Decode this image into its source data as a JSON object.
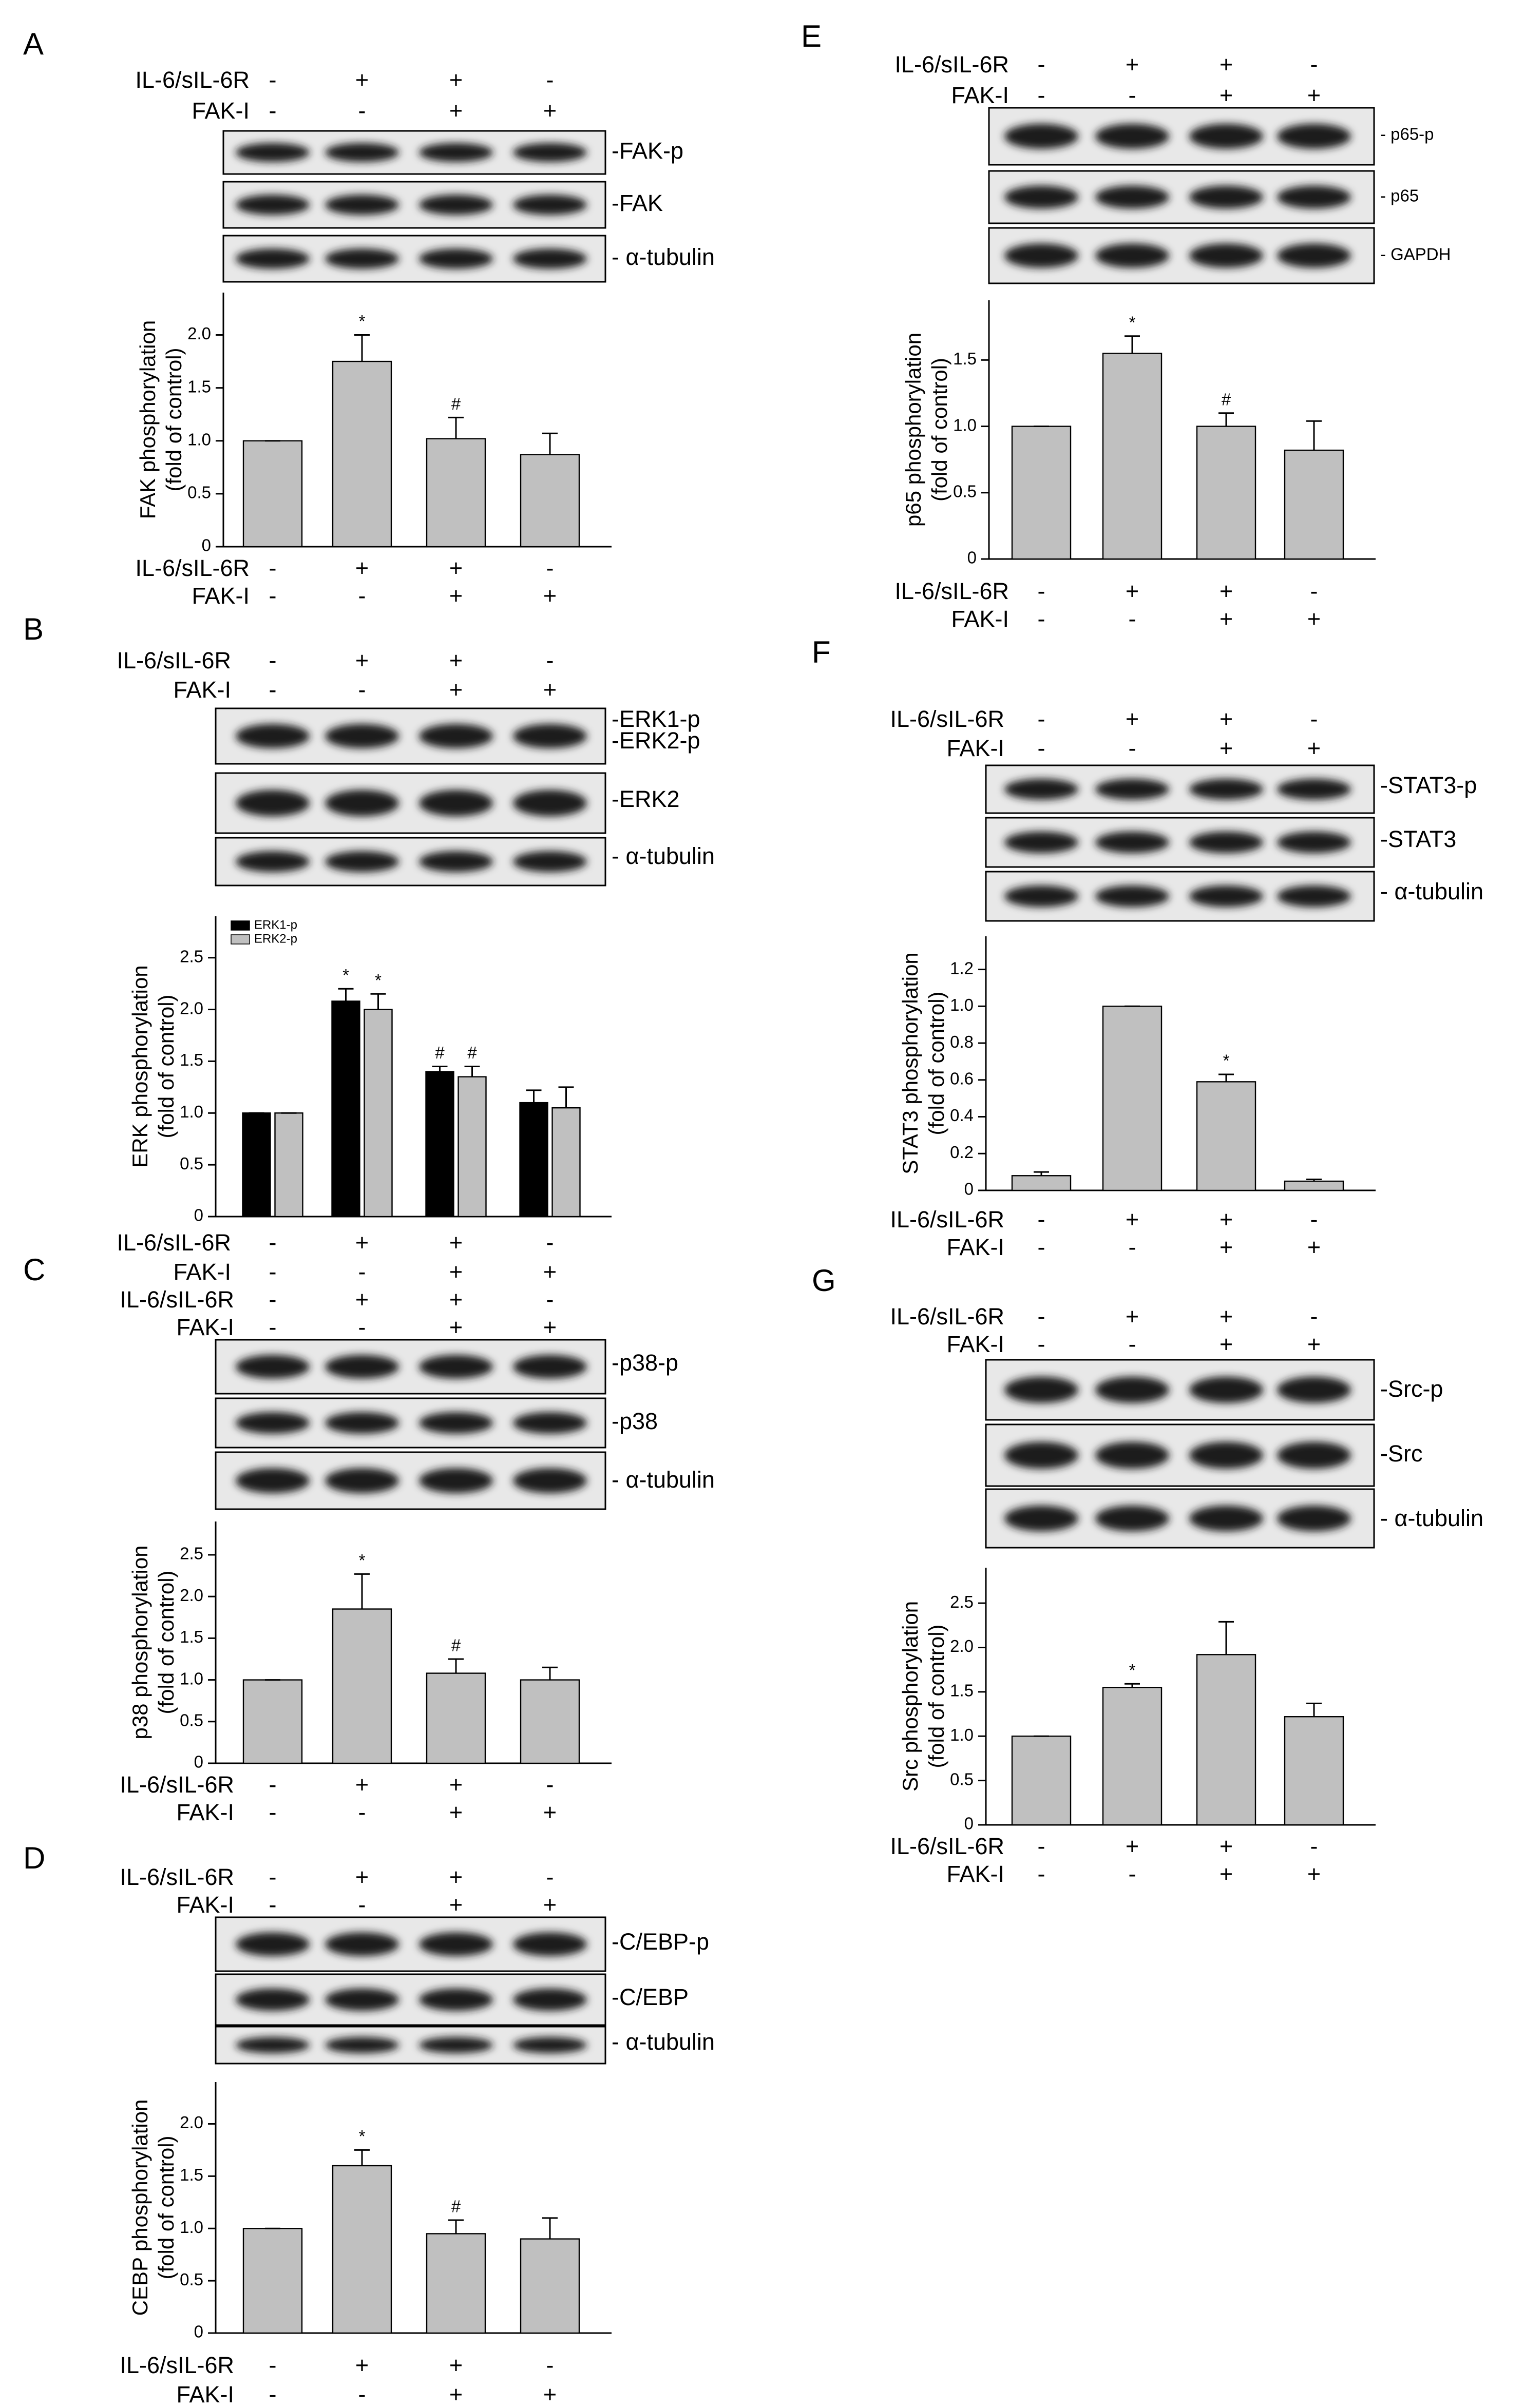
{
  "chart_data": [
    {
      "type": "bar",
      "panel": "A",
      "conditions": [
        {
          "name": "IL-6/sIL-6R",
          "signs": [
            "-",
            "+",
            "+",
            "-"
          ]
        },
        {
          "name": "FAK-I",
          "signs": [
            "-",
            "-",
            "+",
            "+"
          ]
        }
      ],
      "blots": [
        "-FAK-p",
        "-FAK",
        "- α-tubulin"
      ],
      "ylabel": [
        "FAK phosphorylation",
        "(fold of control)"
      ],
      "ylim": [
        0,
        2.4
      ],
      "yticks": [
        0,
        0.5,
        {
          "value": 1,
          "label": "1.0"
        },
        1.5,
        {
          "value": 2,
          "label": "2.0"
        }
      ],
      "series": [
        {
          "color": "#c0c0c0",
          "values": [
            1.0,
            1.75,
            1.02,
            0.87
          ],
          "errors": [
            0,
            0.25,
            0.2,
            0.2
          ],
          "markers": [
            null,
            "*",
            "#",
            null
          ]
        }
      ]
    },
    {
      "type": "bar",
      "panel": "B",
      "conditions": [
        {
          "name": "IL-6/sIL-6R",
          "signs": [
            "-",
            "+",
            "+",
            "-"
          ]
        },
        {
          "name": "FAK-I",
          "signs": [
            "-",
            "-",
            "+",
            "+"
          ]
        }
      ],
      "blots": [
        "-ERK1-p",
        "-ERK2-p",
        "-ERK2",
        "- α-tubulin"
      ],
      "ylabel": [
        "ERK phosphorylation",
        "(fold of control)"
      ],
      "ylim": [
        0,
        2.9
      ],
      "yticks": [
        0,
        0.5,
        {
          "value": 1,
          "label": "1.0"
        },
        1.5,
        {
          "value": 2,
          "label": "2.0"
        },
        2.5
      ],
      "series": [
        {
          "name": "ERK1-p",
          "color": "#000000",
          "values": [
            1.0,
            2.08,
            1.4,
            1.1
          ],
          "errors": [
            0,
            0.12,
            0.05,
            0.12
          ],
          "markers": [
            null,
            "*",
            "#",
            null
          ]
        },
        {
          "name": "ERK2-p",
          "color": "#c0c0c0",
          "values": [
            1.0,
            2.0,
            1.35,
            1.05
          ],
          "errors": [
            0,
            0.15,
            0.1,
            0.2
          ],
          "markers": [
            null,
            "*",
            "#",
            null
          ]
        }
      ]
    },
    {
      "type": "bar",
      "panel": "C",
      "conditions": [
        {
          "name": "IL-6/sIL-6R",
          "signs": [
            "-",
            "+",
            "+",
            "-"
          ]
        },
        {
          "name": "FAK-I",
          "signs": [
            "-",
            "-",
            "+",
            "+"
          ]
        }
      ],
      "blots": [
        "-p38-p",
        "-p38",
        "- α-tubulin"
      ],
      "ylabel": [
        "p38 phosphorylation",
        "(fold of control)"
      ],
      "ylim": [
        0,
        2.9
      ],
      "yticks": [
        0,
        0.5,
        {
          "value": 1,
          "label": "1.0"
        },
        1.5,
        {
          "value": 2,
          "label": "2.0"
        },
        2.5
      ],
      "series": [
        {
          "color": "#c0c0c0",
          "values": [
            1.0,
            1.85,
            1.08,
            1.0
          ],
          "errors": [
            0,
            0.42,
            0.17,
            0.15
          ],
          "markers": [
            null,
            "*",
            "#",
            null
          ]
        }
      ]
    },
    {
      "type": "bar",
      "panel": "D",
      "conditions": [
        {
          "name": "IL-6/sIL-6R",
          "signs": [
            "-",
            "+",
            "+",
            "-"
          ]
        },
        {
          "name": "FAK-I",
          "signs": [
            "-",
            "-",
            "+",
            "+"
          ]
        }
      ],
      "blots": [
        "-C/EBP-p",
        "-C/EBP",
        "- α-tubulin"
      ],
      "ylabel": [
        "CEBP phosphorylation",
        "(fold of control)"
      ],
      "ylim": [
        0,
        2.4
      ],
      "yticks": [
        0,
        0.5,
        {
          "value": 1,
          "label": "1.0"
        },
        1.5,
        {
          "value": 2,
          "label": "2.0"
        }
      ],
      "series": [
        {
          "color": "#c0c0c0",
          "values": [
            1.0,
            1.6,
            0.95,
            0.9
          ],
          "errors": [
            0,
            0.15,
            0.13,
            0.2
          ],
          "markers": [
            null,
            "*",
            "#",
            null
          ]
        }
      ]
    },
    {
      "type": "bar",
      "panel": "E",
      "conditions": [
        {
          "name": "IL-6/sIL-6R",
          "signs": [
            "-",
            "+",
            "+",
            "-"
          ]
        },
        {
          "name": "FAK-I",
          "signs": [
            "-",
            "-",
            "+",
            "+"
          ]
        }
      ],
      "blots": [
        "- p65-p",
        "- p65",
        "- GAPDH"
      ],
      "ylabel": [
        "p65 phosphorylation",
        "(fold of control)"
      ],
      "ylim": [
        0,
        1.95
      ],
      "yticks": [
        0,
        0.5,
        {
          "value": 1,
          "label": "1.0"
        },
        1.5
      ],
      "series": [
        {
          "color": "#c0c0c0",
          "values": [
            1.0,
            1.55,
            1.0,
            0.82
          ],
          "errors": [
            0,
            0.13,
            0.1,
            0.22
          ],
          "markers": [
            null,
            "*",
            "#",
            null
          ]
        }
      ]
    },
    {
      "type": "bar",
      "panel": "F",
      "conditions": [
        {
          "name": "IL-6/sIL-6R",
          "signs": [
            "-",
            "+",
            "+",
            "-"
          ]
        },
        {
          "name": "FAK-I",
          "signs": [
            "-",
            "-",
            "+",
            "+"
          ]
        }
      ],
      "blots": [
        "-STAT3-p",
        "-STAT3",
        "- α-tubulin"
      ],
      "ylabel": [
        "STAT3 phosphorylation",
        "(fold of control)"
      ],
      "ylim": [
        0,
        1.38
      ],
      "yticks": [
        0,
        0.2,
        0.4,
        0.6,
        0.8,
        {
          "value": 1,
          "label": "1.0"
        },
        1.2
      ],
      "series": [
        {
          "color": "#c0c0c0",
          "values": [
            0.08,
            1.0,
            0.59,
            0.05
          ],
          "errors": [
            0.02,
            0,
            0.04,
            0.01
          ],
          "markers": [
            null,
            null,
            "*",
            null
          ]
        }
      ]
    },
    {
      "type": "bar",
      "panel": "G",
      "conditions": [
        {
          "name": "IL-6/sIL-6R",
          "signs": [
            "-",
            "+",
            "+",
            "-"
          ]
        },
        {
          "name": "FAK-I",
          "signs": [
            "-",
            "-",
            "+",
            "+"
          ]
        }
      ],
      "blots": [
        "-Src-p",
        "-Src",
        "- α-tubulin"
      ],
      "ylabel": [
        "Src phosphorylation",
        "(fold of control)"
      ],
      "ylim": [
        0,
        2.9
      ],
      "yticks": [
        0,
        0.5,
        {
          "value": 1,
          "label": "1.0"
        },
        1.5,
        {
          "value": 2,
          "label": "2.0"
        },
        2.5
      ],
      "series": [
        {
          "color": "#c0c0c0",
          "values": [
            1.0,
            1.55,
            1.92,
            1.22
          ],
          "errors": [
            0,
            0.04,
            0.37,
            0.15
          ],
          "markers": [
            null,
            "*",
            null,
            null
          ]
        }
      ]
    }
  ]
}
